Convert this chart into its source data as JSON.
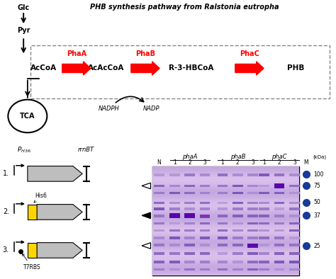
{
  "panel_A": {
    "title": "PHB synthesis pathway from Ralstonia eutropha",
    "metabolites": [
      "AcCoA",
      "AcAcCoA",
      "R-3-HBCoA",
      "PHB"
    ],
    "enzymes": [
      "PhaA",
      "PhaB",
      "PhaC"
    ],
    "cofactors": [
      "NADPH",
      "NADP"
    ],
    "upstream": [
      "Glc",
      "Pyr"
    ],
    "tca_label": "TCA"
  },
  "panel_B": {
    "constructs": [
      "1.",
      "2.",
      "3."
    ],
    "promoter_label": "P",
    "promoter_sub": "H36",
    "terminator": "rrnBT",
    "his6": "His6",
    "t7rbs": "T7RBS",
    "gel_genes": [
      "phaA",
      "phaB",
      "phaC"
    ],
    "gel_lanes": [
      "N",
      "1",
      "2",
      "3"
    ],
    "gel_markers": [
      100,
      75,
      50,
      37,
      25
    ],
    "marker_label": "M",
    "kdal_label": "(kDa)"
  },
  "colors": {
    "red": "#FF0000",
    "black": "#000000",
    "white": "#FFFFFF",
    "gray": "#BEBEBE",
    "yellow": "#FFD700",
    "dashed_box": "#888888",
    "gel_bg_light": "#F0D8F8",
    "gel_bg_dark": "#C890E0",
    "marker_blue": "#1A3A99",
    "tca_circle": "#000000"
  }
}
